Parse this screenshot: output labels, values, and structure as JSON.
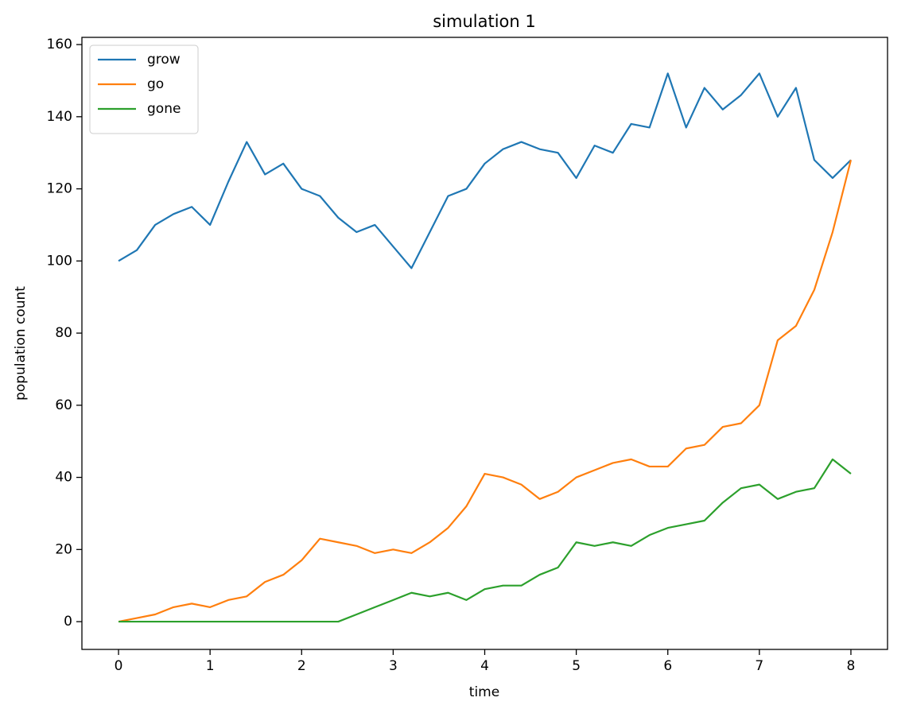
{
  "chart_data": {
    "type": "line",
    "title": "simulation 1",
    "xlabel": "time",
    "ylabel": "population count",
    "x": [
      0,
      0.2,
      0.4,
      0.6,
      0.8,
      1.0,
      1.2,
      1.4,
      1.6,
      1.8,
      2.0,
      2.2,
      2.4,
      2.6,
      2.8,
      3.0,
      3.2,
      3.4,
      3.6,
      3.8,
      4.0,
      4.2,
      4.4,
      4.6,
      4.8,
      5.0,
      5.2,
      5.4,
      5.6,
      5.8,
      6.0,
      6.2,
      6.4,
      6.6,
      6.8,
      7.0,
      7.2,
      7.4,
      7.6,
      7.8,
      8.0
    ],
    "series": [
      {
        "name": "grow",
        "color": "#1f77b4",
        "values": [
          100,
          103,
          110,
          113,
          115,
          110,
          122,
          133,
          124,
          127,
          120,
          118,
          112,
          108,
          110,
          104,
          98,
          108,
          118,
          120,
          127,
          131,
          133,
          131,
          130,
          123,
          132,
          130,
          138,
          137,
          152,
          137,
          148,
          142,
          146,
          152,
          140,
          148,
          128,
          123,
          128
        ]
      },
      {
        "name": "go",
        "color": "#ff7f0e",
        "values": [
          0,
          1,
          2,
          4,
          5,
          4,
          6,
          7,
          11,
          13,
          17,
          23,
          22,
          21,
          19,
          20,
          19,
          22,
          26,
          32,
          41,
          40,
          38,
          34,
          36,
          40,
          42,
          44,
          45,
          43,
          43,
          48,
          49,
          54,
          55,
          60,
          78,
          82,
          92,
          108,
          128
        ]
      },
      {
        "name": "gone",
        "color": "#2ca02c",
        "values": [
          0,
          0,
          0,
          0,
          0,
          0,
          0,
          0,
          0,
          0,
          0,
          0,
          0,
          2,
          4,
          6,
          8,
          7,
          8,
          6,
          9,
          10,
          10,
          13,
          15,
          22,
          21,
          22,
          21,
          24,
          26,
          27,
          28,
          33,
          37,
          38,
          34,
          36,
          37,
          45,
          41
        ]
      }
    ],
    "xlim": [
      -0.4,
      8.4
    ],
    "ylim": [
      -7.7,
      162
    ],
    "xticks": [
      0,
      1,
      2,
      3,
      4,
      5,
      6,
      7,
      8
    ],
    "yticks": [
      0,
      20,
      40,
      60,
      80,
      100,
      120,
      140,
      160
    ],
    "legend": "upper left"
  }
}
